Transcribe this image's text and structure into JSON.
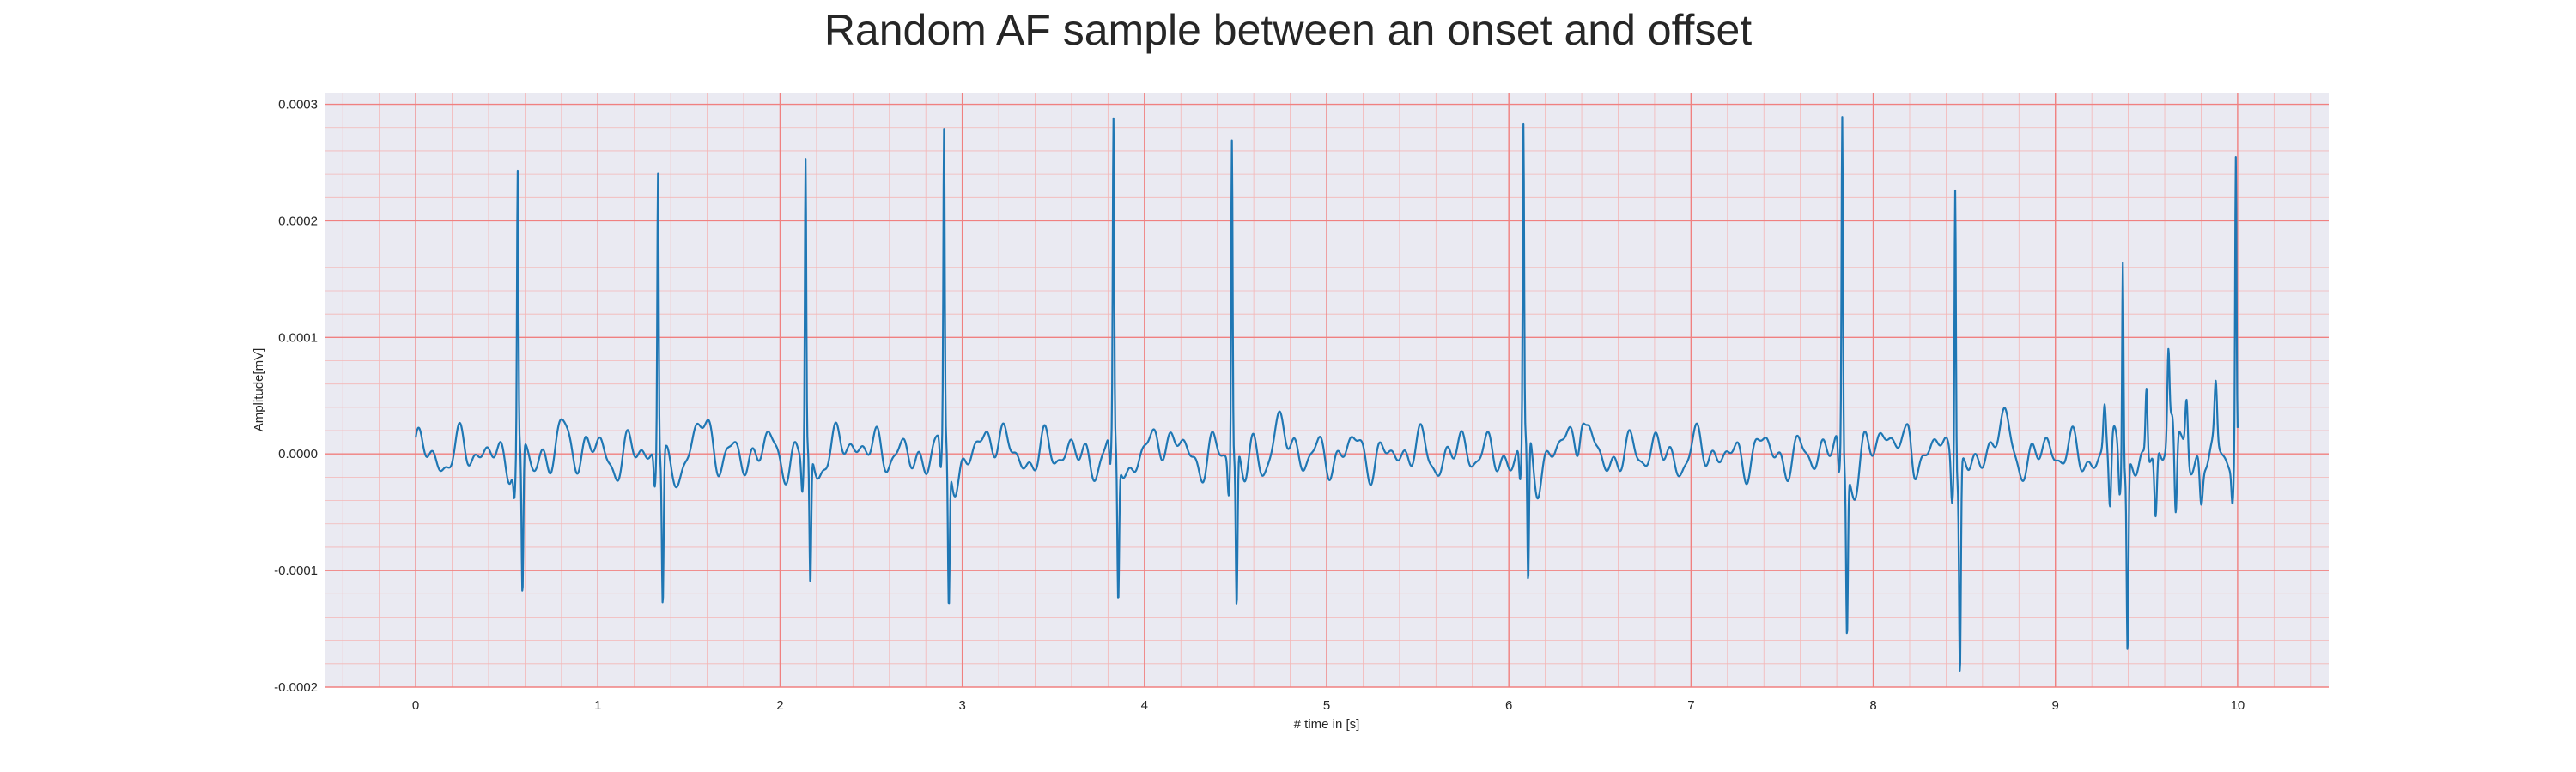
{
  "chart_data": {
    "type": "line",
    "title": "Random AF sample between an onset and offset",
    "xlabel": "# time in [s]",
    "ylabel": "Amplitude[mV]",
    "xlim": [
      -0.5,
      10.5
    ],
    "ylim": [
      -0.0002,
      0.00031
    ],
    "xticks": [
      0,
      1,
      2,
      3,
      4,
      5,
      6,
      7,
      8,
      9,
      10
    ],
    "xtick_labels": [
      "0",
      "1",
      "2",
      "3",
      "4",
      "5",
      "6",
      "7",
      "8",
      "9",
      "10"
    ],
    "yticks": [
      -0.0002,
      -0.0001,
      0.0,
      0.0001,
      0.0002,
      0.0003
    ],
    "ytick_labels": [
      "-0.0002",
      "-0.0001",
      "0.0000",
      "0.0001",
      "0.0002",
      "0.0003"
    ],
    "grid": true,
    "minor_grid": true,
    "colors": {
      "background": "#eaeaf2",
      "major_grid": "#f08080",
      "minor_grid": "#f4b6b6",
      "line": "#1f77b4"
    },
    "series": [
      {
        "color": "#1f77b4",
        "beats": [
          {
            "t": 0.56,
            "peak": 0.000238,
            "trough": -0.00013
          },
          {
            "t": 1.33,
            "peak": 0.000243,
            "trough": -0.00013
          },
          {
            "t": 2.14,
            "peak": 0.00025,
            "trough": -0.000115
          },
          {
            "t": 2.9,
            "peak": 0.00026,
            "trough": -0.00013
          },
          {
            "t": 3.83,
            "peak": 0.000267,
            "trough": -0.000123
          },
          {
            "t": 4.48,
            "peak": 0.000275,
            "trough": -0.000135
          },
          {
            "t": 6.08,
            "peak": 0.000271,
            "trough": -0.00013
          },
          {
            "t": 7.83,
            "peak": 0.000289,
            "trough": -0.00014
          },
          {
            "t": 8.45,
            "peak": 0.000251,
            "trough": -0.000178
          },
          {
            "t": 9.37,
            "peak": 0.000183,
            "trough": -0.00016
          },
          {
            "t": 9.99,
            "peak": 0.000252,
            "trough": -0.0001
          }
        ],
        "t_start": 0.0,
        "t_end": 10.0
      }
    ]
  }
}
